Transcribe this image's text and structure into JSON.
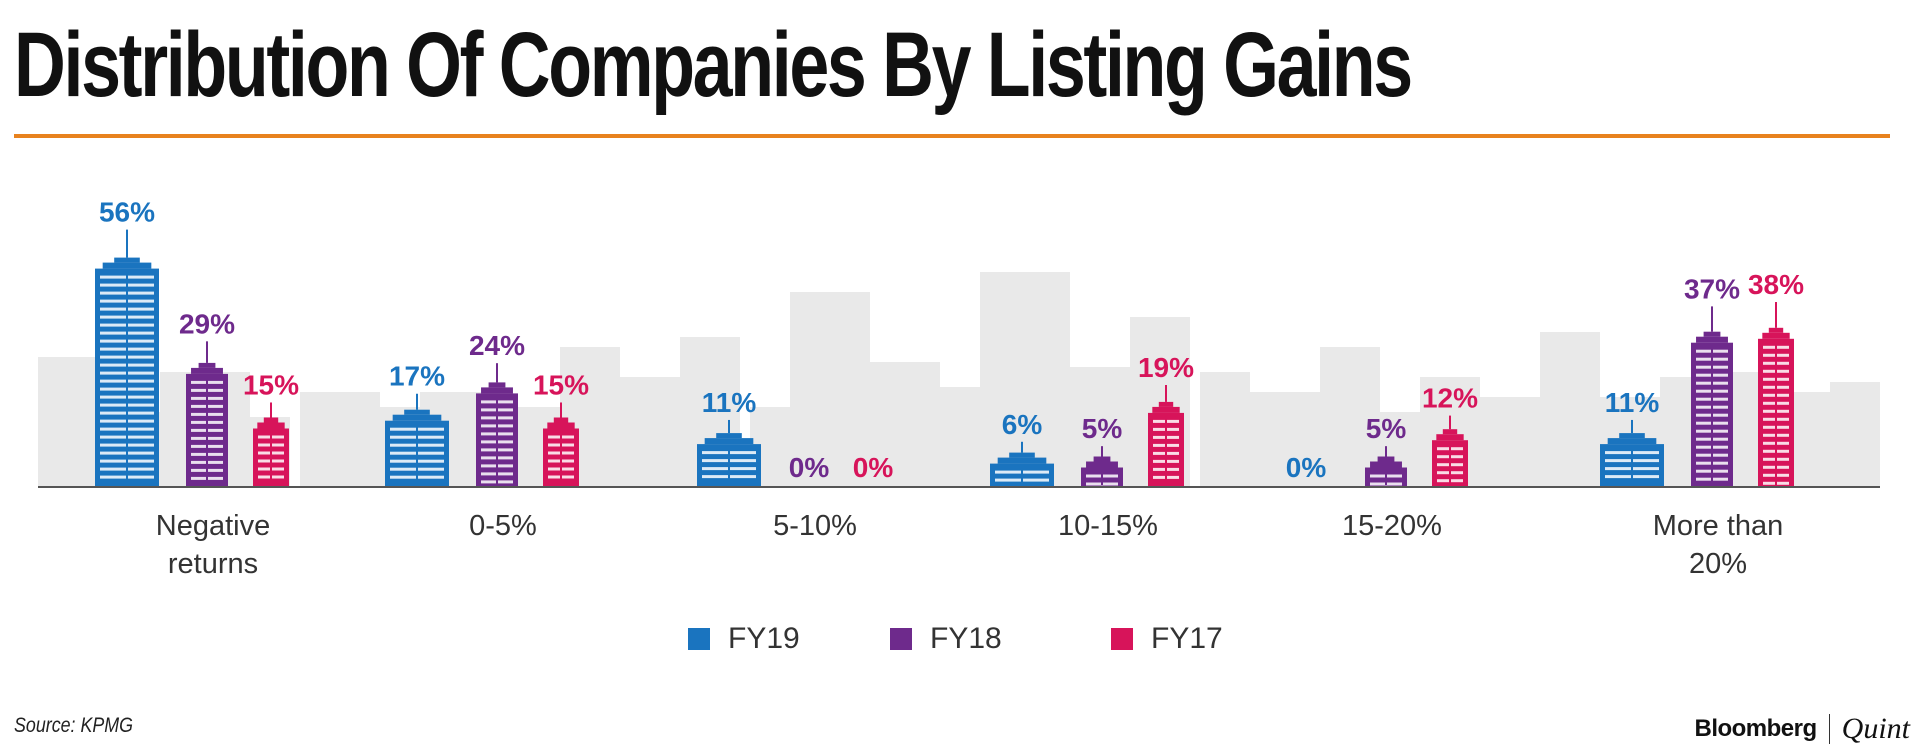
{
  "header": {
    "title": "Distribution Of Companies By Listing Gains"
  },
  "colors": {
    "accent_rule": "#e8821e",
    "FY19": "#1a74bf",
    "FY18": "#6e2a8c",
    "FY17": "#d7145a",
    "skyline": "#e9e9e9",
    "baseline": "#555555"
  },
  "chart_data": {
    "type": "bar",
    "title": "Distribution Of Companies By Listing Gains",
    "categories": [
      "Negative returns",
      "0-5%",
      "5-10%",
      "10-15%",
      "15-20%",
      "More than 20%"
    ],
    "category_lines": [
      [
        "Negative",
        "returns"
      ],
      [
        "0-5%"
      ],
      [
        "5-10%"
      ],
      [
        "10-15%"
      ],
      [
        "15-20%"
      ],
      [
        "More than",
        "20%"
      ]
    ],
    "series": [
      {
        "name": "FY19",
        "values": [
          56,
          17,
          11,
          6,
          0,
          11
        ],
        "labels": [
          "56%",
          "17%",
          "11%",
          "6%",
          "0%",
          "11%"
        ]
      },
      {
        "name": "FY18",
        "values": [
          29,
          24,
          0,
          5,
          5,
          37
        ],
        "labels": [
          "29%",
          "24%",
          "0%",
          "5%",
          "5%",
          "37%"
        ]
      },
      {
        "name": "FY17",
        "values": [
          15,
          15,
          0,
          19,
          12,
          38
        ],
        "labels": [
          "15%",
          "15%",
          "0%",
          "19%",
          "12%",
          "38%"
        ]
      }
    ],
    "ylim": [
      0,
      60
    ],
    "grid": false,
    "legend_position": "bottom-center"
  },
  "footer": {
    "source": "Source: KPMG",
    "brand_left": "Bloomberg",
    "brand_right": "Quint"
  }
}
